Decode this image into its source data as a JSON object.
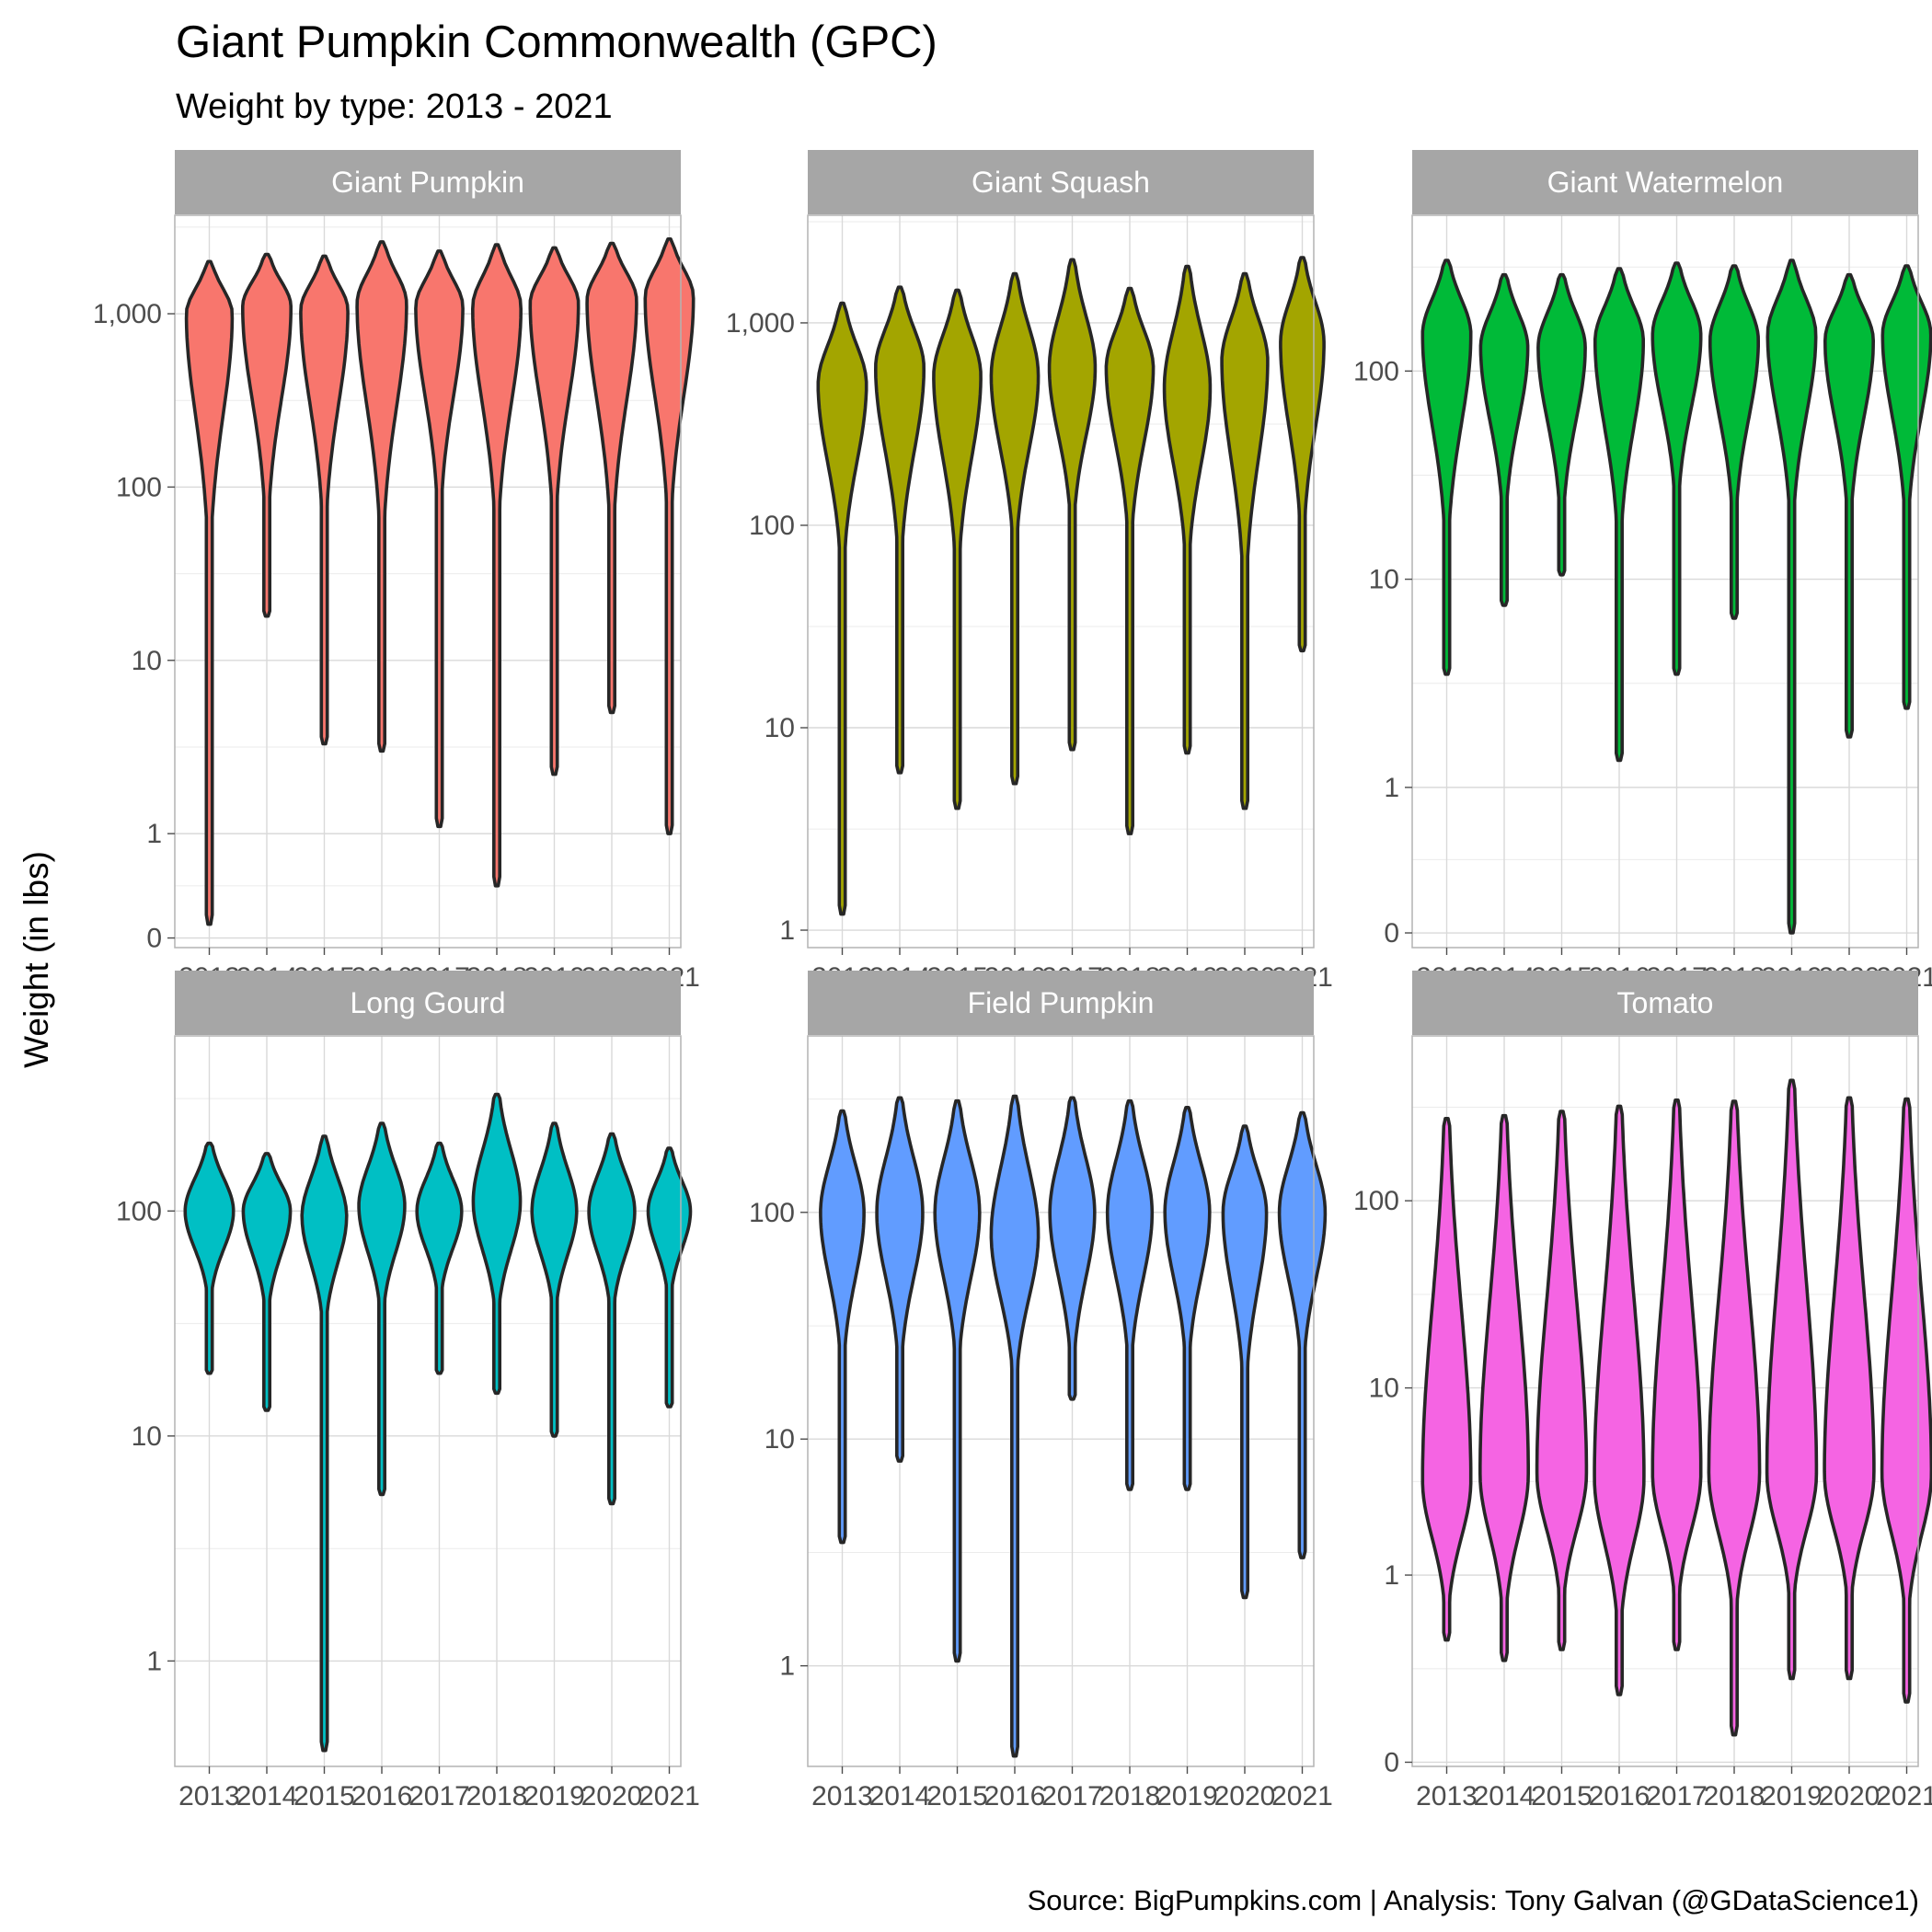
{
  "title": "Giant Pumpkin Commonwealth (GPC)",
  "subtitle": "Weight by type: 2013 - 2021",
  "ylabel": "Weight (in lbs)",
  "caption": "Source: BigPumpkins.com  |  Analysis: Tony Galvan (@GDataScience1)",
  "chart_data": {
    "type": "violin",
    "facets": 6,
    "x_categories": [
      "2013",
      "2014",
      "2015",
      "2016",
      "2017",
      "2018",
      "2019",
      "2020",
      "2021"
    ],
    "y_scale": "log10",
    "grid": true,
    "legend": "none",
    "panels": [
      {
        "name": "Giant Pumpkin",
        "color": "#F8766D",
        "ylim": [
          0.22,
          3700
        ],
        "ticks": [
          {
            "v": 0.25,
            "l": "0"
          },
          {
            "v": 1,
            "l": "1"
          },
          {
            "v": 10,
            "l": "10"
          },
          {
            "v": 100,
            "l": "100"
          },
          {
            "v": 1000,
            "l": "1,000"
          }
        ],
        "minor": [
          0.5,
          3.16,
          31.6,
          316,
          3160
        ],
        "violins": [
          {
            "x": "2013",
            "min": 0.3,
            "max": 2000,
            "peak": 1000,
            "lo": 90,
            "hw": 0.38
          },
          {
            "x": "2014",
            "min": 18,
            "max": 2200,
            "peak": 1100,
            "lo": 120,
            "hw": 0.4
          },
          {
            "x": "2015",
            "min": 3.3,
            "max": 2150,
            "peak": 1050,
            "lo": 110,
            "hw": 0.39
          },
          {
            "x": "2016",
            "min": 3,
            "max": 2600,
            "peak": 1150,
            "lo": 100,
            "hw": 0.41
          },
          {
            "x": "2017",
            "min": 1.1,
            "max": 2300,
            "peak": 1100,
            "lo": 130,
            "hw": 0.39
          },
          {
            "x": "2018",
            "min": 0.5,
            "max": 2500,
            "peak": 1100,
            "lo": 110,
            "hw": 0.4
          },
          {
            "x": "2019",
            "min": 2.2,
            "max": 2400,
            "peak": 1150,
            "lo": 120,
            "hw": 0.4
          },
          {
            "x": "2020",
            "min": 5,
            "max": 2550,
            "peak": 1200,
            "lo": 110,
            "hw": 0.41
          },
          {
            "x": "2021",
            "min": 1,
            "max": 2700,
            "peak": 1250,
            "lo": 120,
            "hw": 0.4
          }
        ]
      },
      {
        "name": "Giant Squash",
        "color": "#A3A500",
        "ylim": [
          0.82,
          3400
        ],
        "ticks": [
          {
            "v": 1,
            "l": "1"
          },
          {
            "v": 10,
            "l": "10"
          },
          {
            "v": 100,
            "l": "100"
          },
          {
            "v": 1000,
            "l": "1,000"
          }
        ],
        "minor": [
          3.16,
          31.6,
          316,
          3160
        ],
        "violins": [
          {
            "x": "2013",
            "min": 1.2,
            "max": 1250,
            "peak": 500,
            "lo": 100,
            "hw": 0.4
          },
          {
            "x": "2014",
            "min": 6,
            "max": 1500,
            "peak": 600,
            "lo": 110,
            "hw": 0.4
          },
          {
            "x": "2015",
            "min": 4,
            "max": 1450,
            "peak": 550,
            "lo": 100,
            "hw": 0.39
          },
          {
            "x": "2016",
            "min": 5.3,
            "max": 1750,
            "peak": 550,
            "lo": 120,
            "hw": 0.39
          },
          {
            "x": "2017",
            "min": 7.8,
            "max": 2050,
            "peak": 600,
            "lo": 150,
            "hw": 0.38
          },
          {
            "x": "2018",
            "min": 3,
            "max": 1480,
            "peak": 600,
            "lo": 130,
            "hw": 0.39
          },
          {
            "x": "2019",
            "min": 7.5,
            "max": 1900,
            "peak": 480,
            "lo": 100,
            "hw": 0.38
          },
          {
            "x": "2020",
            "min": 4,
            "max": 1750,
            "peak": 650,
            "lo": 90,
            "hw": 0.38
          },
          {
            "x": "2021",
            "min": 24,
            "max": 2100,
            "peak": 800,
            "lo": 140,
            "hw": 0.36
          }
        ]
      },
      {
        "name": "Giant Watermelon",
        "color": "#00BA38",
        "ylim": [
          0.17,
          560
        ],
        "ticks": [
          {
            "v": 0.2,
            "l": "0"
          },
          {
            "v": 1,
            "l": "1"
          },
          {
            "v": 10,
            "l": "10"
          },
          {
            "v": 100,
            "l": "100"
          }
        ],
        "minor": [
          0.45,
          3.16,
          31.6,
          316
        ],
        "violins": [
          {
            "x": "2013",
            "min": 3.5,
            "max": 340,
            "peak": 150,
            "lo": 25,
            "hw": 0.4
          },
          {
            "x": "2014",
            "min": 7.5,
            "max": 290,
            "peak": 130,
            "lo": 30,
            "hw": 0.39
          },
          {
            "x": "2015",
            "min": 10.5,
            "max": 290,
            "peak": 130,
            "lo": 30,
            "hw": 0.39
          },
          {
            "x": "2016",
            "min": 1.35,
            "max": 310,
            "peak": 140,
            "lo": 25,
            "hw": 0.4
          },
          {
            "x": "2017",
            "min": 3.5,
            "max": 330,
            "peak": 150,
            "lo": 35,
            "hw": 0.4
          },
          {
            "x": "2018",
            "min": 6.5,
            "max": 320,
            "peak": 140,
            "lo": 30,
            "hw": 0.4
          },
          {
            "x": "2019",
            "min": 0.2,
            "max": 340,
            "peak": 150,
            "lo": 30,
            "hw": 0.4
          },
          {
            "x": "2020",
            "min": 1.75,
            "max": 290,
            "peak": 140,
            "lo": 30,
            "hw": 0.4
          },
          {
            "x": "2021",
            "min": 2.4,
            "max": 320,
            "peak": 150,
            "lo": 30,
            "hw": 0.4
          }
        ]
      },
      {
        "name": "Long Gourd",
        "color": "#00BFC4",
        "ylim": [
          0.34,
          600
        ],
        "ticks": [
          {
            "v": 1,
            "l": "1"
          },
          {
            "v": 10,
            "l": "10"
          },
          {
            "v": 100,
            "l": "100"
          }
        ],
        "minor": [
          3.16,
          31.6,
          316
        ],
        "violins": [
          {
            "x": "2013",
            "min": 19,
            "max": 200,
            "peak": 100,
            "lo": 50,
            "hw": 0.4
          },
          {
            "x": "2014",
            "min": 13,
            "max": 180,
            "peak": 100,
            "lo": 45,
            "hw": 0.39
          },
          {
            "x": "2015",
            "min": 0.4,
            "max": 215,
            "peak": 95,
            "lo": 40,
            "hw": 0.37
          },
          {
            "x": "2016",
            "min": 5.5,
            "max": 245,
            "peak": 105,
            "lo": 45,
            "hw": 0.38
          },
          {
            "x": "2017",
            "min": 19,
            "max": 200,
            "peak": 100,
            "lo": 50,
            "hw": 0.37
          },
          {
            "x": "2018",
            "min": 15.5,
            "max": 330,
            "peak": 110,
            "lo": 45,
            "hw": 0.39
          },
          {
            "x": "2019",
            "min": 10,
            "max": 245,
            "peak": 100,
            "lo": 45,
            "hw": 0.37
          },
          {
            "x": "2020",
            "min": 5,
            "max": 220,
            "peak": 100,
            "lo": 45,
            "hw": 0.38
          },
          {
            "x": "2021",
            "min": 13.5,
            "max": 190,
            "peak": 100,
            "lo": 50,
            "hw": 0.35
          }
        ]
      },
      {
        "name": "Field Pumpkin",
        "color": "#619CFF",
        "ylim": [
          0.36,
          600
        ],
        "ticks": [
          {
            "v": 1,
            "l": "1"
          },
          {
            "v": 10,
            "l": "10"
          },
          {
            "v": 100,
            "l": "100"
          }
        ],
        "minor": [
          3.16,
          31.6,
          316
        ],
        "violins": [
          {
            "x": "2013",
            "min": 3.5,
            "max": 280,
            "peak": 100,
            "lo": 30,
            "hw": 0.36
          },
          {
            "x": "2014",
            "min": 8,
            "max": 320,
            "peak": 100,
            "lo": 30,
            "hw": 0.38
          },
          {
            "x": "2015",
            "min": 1.05,
            "max": 310,
            "peak": 100,
            "lo": 30,
            "hw": 0.37
          },
          {
            "x": "2016",
            "min": 0.4,
            "max": 325,
            "peak": 80,
            "lo": 25,
            "hw": 0.39
          },
          {
            "x": "2017",
            "min": 15,
            "max": 320,
            "peak": 100,
            "lo": 30,
            "hw": 0.37
          },
          {
            "x": "2018",
            "min": 6,
            "max": 310,
            "peak": 100,
            "lo": 30,
            "hw": 0.37
          },
          {
            "x": "2019",
            "min": 6,
            "max": 290,
            "peak": 100,
            "lo": 30,
            "hw": 0.37
          },
          {
            "x": "2020",
            "min": 2,
            "max": 240,
            "peak": 100,
            "lo": 25,
            "hw": 0.36
          },
          {
            "x": "2021",
            "min": 3,
            "max": 275,
            "peak": 100,
            "lo": 30,
            "hw": 0.38
          }
        ]
      },
      {
        "name": "Tomato",
        "color": "#F564E3",
        "ylim": [
          0.095,
          760
        ],
        "ticks": [
          {
            "v": 0.1,
            "l": "0"
          },
          {
            "v": 1,
            "l": "1"
          },
          {
            "v": 10,
            "l": "10"
          },
          {
            "v": 100,
            "l": "100"
          }
        ],
        "minor": [
          0.316,
          3.16,
          31.6,
          316
        ],
        "violins": [
          {
            "x": "2013",
            "min": 0.45,
            "max": 275,
            "peak": 3.2,
            "lo": 0.9,
            "hw": 0.4
          },
          {
            "x": "2014",
            "min": 0.35,
            "max": 285,
            "peak": 3.5,
            "lo": 0.9,
            "hw": 0.4
          },
          {
            "x": "2015",
            "min": 0.4,
            "max": 300,
            "peak": 3.5,
            "lo": 1.0,
            "hw": 0.41
          },
          {
            "x": "2016",
            "min": 0.23,
            "max": 320,
            "peak": 3.3,
            "lo": 0.8,
            "hw": 0.41
          },
          {
            "x": "2017",
            "min": 0.4,
            "max": 345,
            "peak": 3.5,
            "lo": 1.0,
            "hw": 0.4
          },
          {
            "x": "2018",
            "min": 0.14,
            "max": 340,
            "peak": 3.5,
            "lo": 0.9,
            "hw": 0.42
          },
          {
            "x": "2019",
            "min": 0.28,
            "max": 440,
            "peak": 3.5,
            "lo": 1.0,
            "hw": 0.41
          },
          {
            "x": "2020",
            "min": 0.28,
            "max": 355,
            "peak": 3.5,
            "lo": 1.0,
            "hw": 0.41
          },
          {
            "x": "2021",
            "min": 0.21,
            "max": 350,
            "peak": 3.5,
            "lo": 0.9,
            "hw": 0.41
          }
        ]
      }
    ]
  }
}
